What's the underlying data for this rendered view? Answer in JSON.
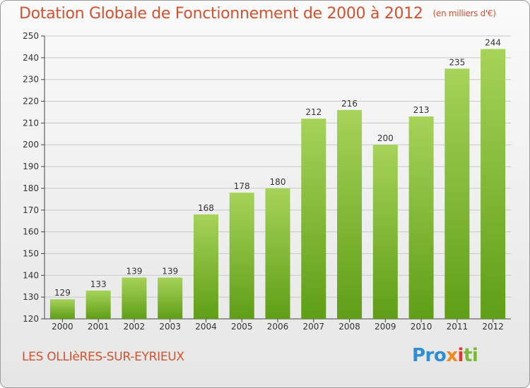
{
  "header": {
    "title": "Dotation Globale de Fonctionnement de 2000 à 2012",
    "unit": "(en milliers d'€)"
  },
  "footer": {
    "city": "LES OLLIèRES-SUR-EYRIEUX",
    "logo_parts": [
      "Pro",
      "x",
      "i",
      "ti"
    ]
  },
  "colors": {
    "title": "#d2522f",
    "bar_top": "#a6d35a",
    "bar_bottom": "#5f9e16",
    "grid": "#c8c8c8"
  },
  "chart_data": {
    "type": "bar",
    "title": "Dotation Globale de Fonctionnement de 2000 à 2012",
    "subtitle": "(en milliers d'€)",
    "xlabel": "",
    "ylabel": "",
    "categories": [
      "2000",
      "2001",
      "2002",
      "2003",
      "2004",
      "2005",
      "2006",
      "2007",
      "2008",
      "2009",
      "2010",
      "2011",
      "2012"
    ],
    "values": [
      129,
      133,
      139,
      139,
      168,
      178,
      180,
      212,
      216,
      200,
      213,
      235,
      244
    ],
    "ylim": [
      120,
      250
    ],
    "yticks": [
      120,
      130,
      140,
      150,
      160,
      170,
      180,
      190,
      200,
      210,
      220,
      230,
      240,
      250
    ],
    "grid": true,
    "data_labels": true
  }
}
